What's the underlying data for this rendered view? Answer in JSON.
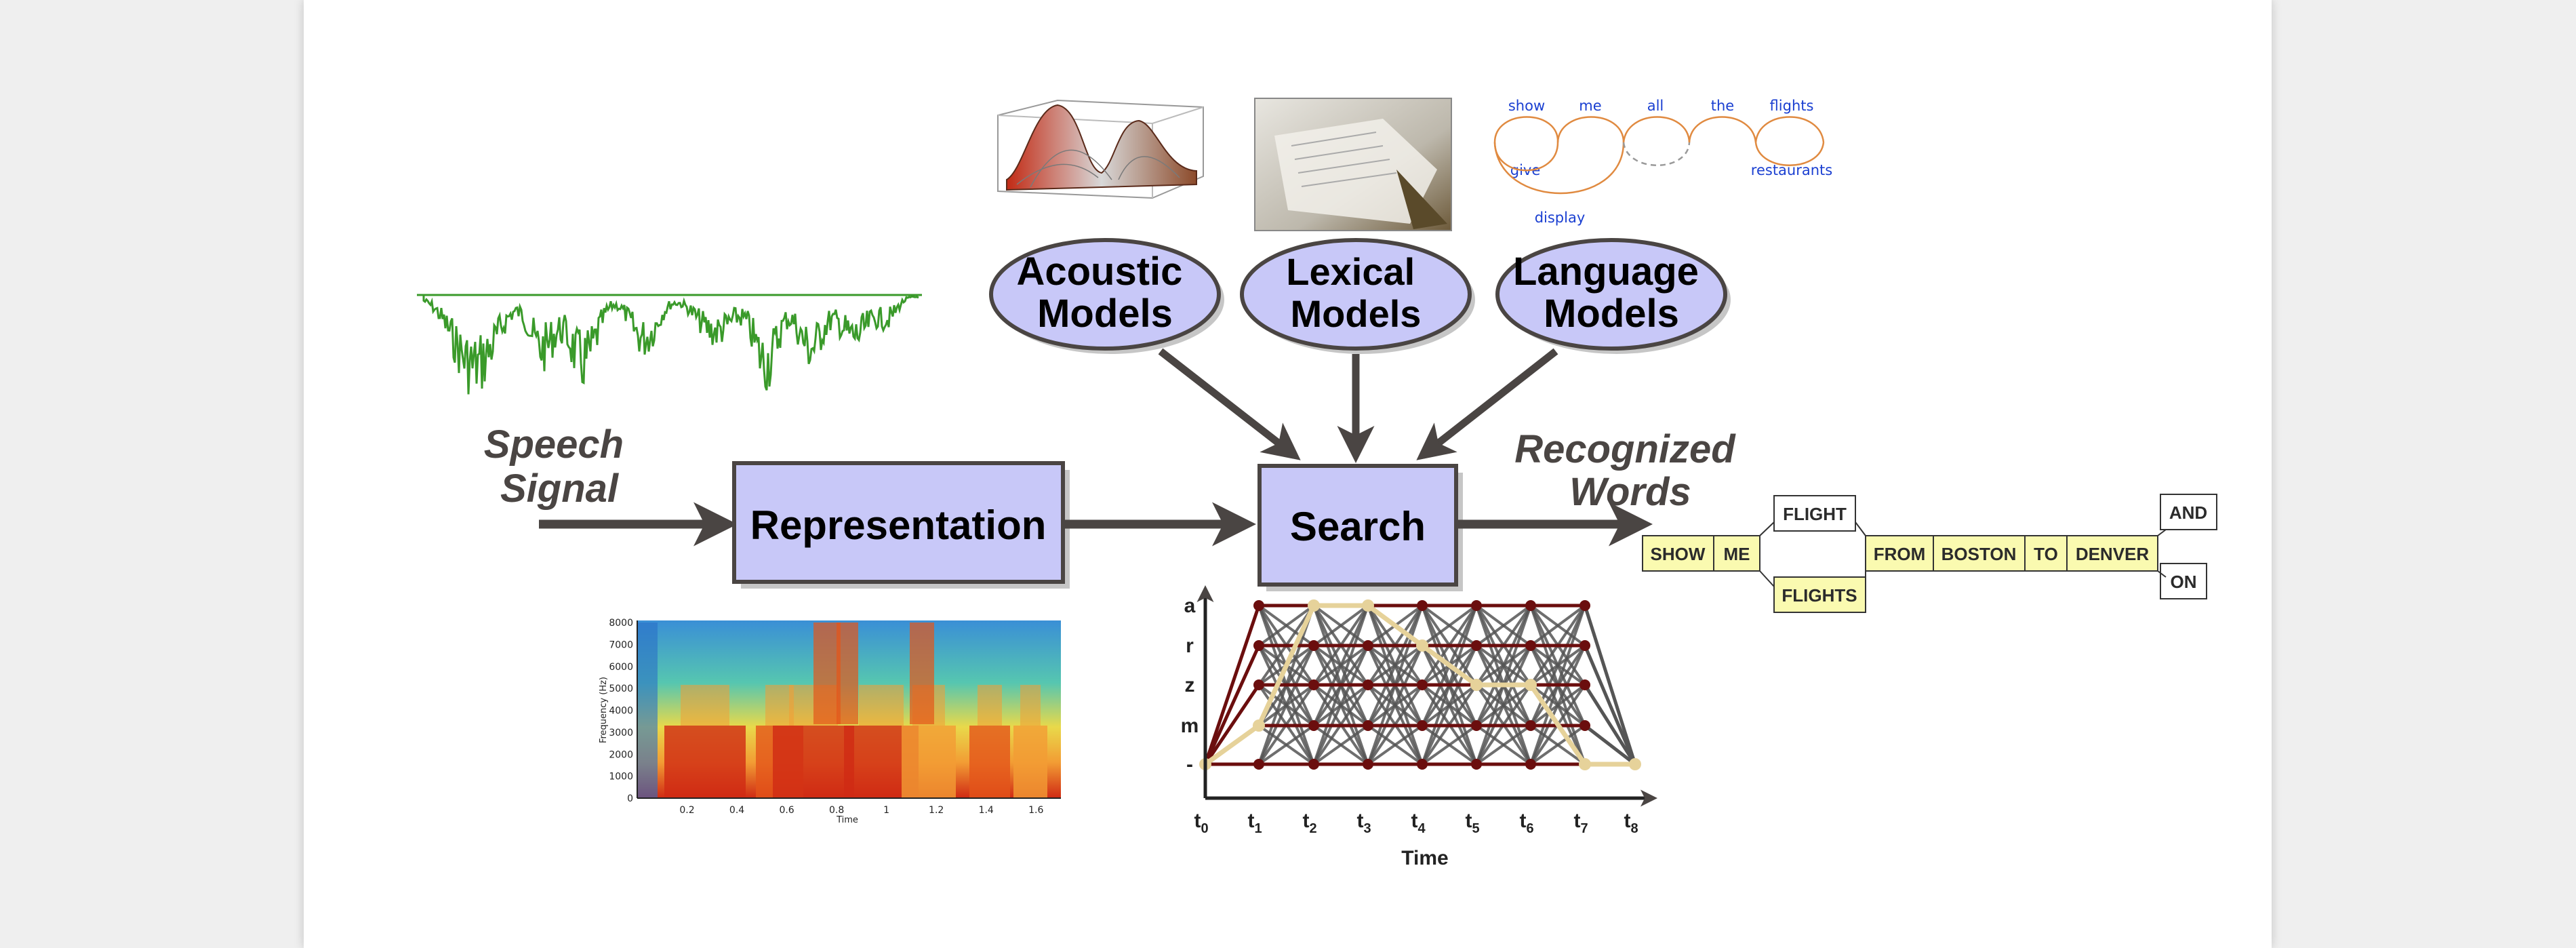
{
  "colors": {
    "box_fill": "#c8c8f8",
    "box_stroke": "#4a4543",
    "arrow": "#4a4543",
    "waveform": "#3a9a2a",
    "word_fill": "#fafab0",
    "lattice_dark": "#6b0e0e",
    "lattice_gray": "#555555",
    "lattice_path": "#e6d29a",
    "lm_word": "#1a3fd1",
    "lm_arc": "#e08a40"
  },
  "models": {
    "acoustic": [
      "Acoustic",
      "Models"
    ],
    "lexical": [
      "Lexical",
      "Models"
    ],
    "language": [
      "Language",
      "Models"
    ]
  },
  "input_label": [
    "Speech",
    "Signal"
  ],
  "output_label": [
    "Recognized",
    "Words"
  ],
  "representation_label": "Representation",
  "search_label": "Search",
  "lm_words": {
    "top": [
      "show",
      "me",
      "all",
      "the",
      "flights"
    ],
    "give": "give",
    "display": "display",
    "restaurants": "restaurants"
  },
  "word_lattice": {
    "main": [
      "SHOW",
      "ME",
      "FROM",
      "BOSTON",
      "TO",
      "DENVER"
    ],
    "alt_upper": "FLIGHT",
    "alt_lower": "FLIGHTS",
    "end_upper": "AND",
    "end_lower": "ON"
  },
  "spectrogram": {
    "ylabel": "Frequency (Hz)",
    "xlabel": "Time",
    "yticks": [
      "0",
      "1000",
      "2000",
      "3000",
      "4000",
      "5000",
      "6000",
      "7000",
      "8000"
    ],
    "xticks": [
      "0.2",
      "0.4",
      "0.6",
      "0.8",
      "1",
      "1.2",
      "1.4",
      "1.6"
    ]
  },
  "search_lattice": {
    "states": [
      "a",
      "r",
      "z",
      "m",
      "-"
    ],
    "time_sub": [
      "0",
      "1",
      "2",
      "3",
      "4",
      "5",
      "6",
      "7",
      "8"
    ],
    "time_prefix": "t",
    "xlabel": "Time"
  }
}
